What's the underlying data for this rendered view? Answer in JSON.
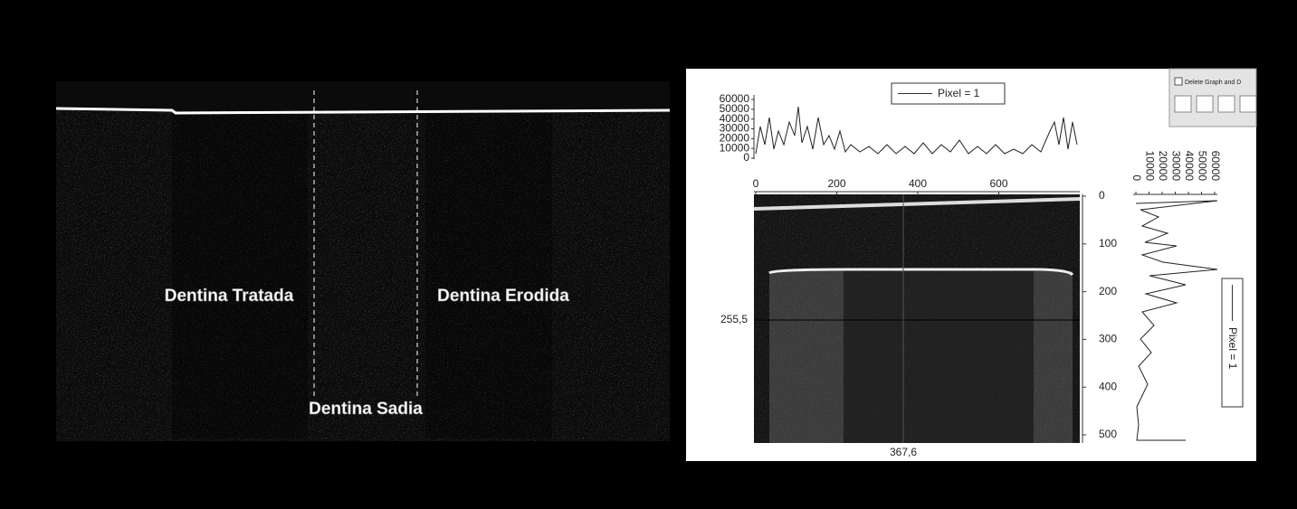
{
  "left_image": {
    "labels": [
      "Dentina Tratada",
      "Dentina Erodida",
      "Dentina Sadia"
    ]
  },
  "software_window": {
    "dialog": {
      "checkbox_label": "Delete Graph and D"
    },
    "top_profile": {
      "legend": "Pixel = 1",
      "yticks": [
        60000,
        50000,
        40000,
        30000,
        20000,
        10000,
        0
      ]
    },
    "image_xticks": [
      0,
      200,
      400,
      600
    ],
    "image_yticks": [
      0,
      100,
      200,
      300,
      400,
      500
    ],
    "side_profile": {
      "legend": "Pixel = 1",
      "xticks": [
        0,
        10000,
        20000,
        30000,
        40000,
        50000,
        60000
      ]
    },
    "cursor": {
      "y_label": "255,5",
      "x_label": "367,6"
    }
  }
}
